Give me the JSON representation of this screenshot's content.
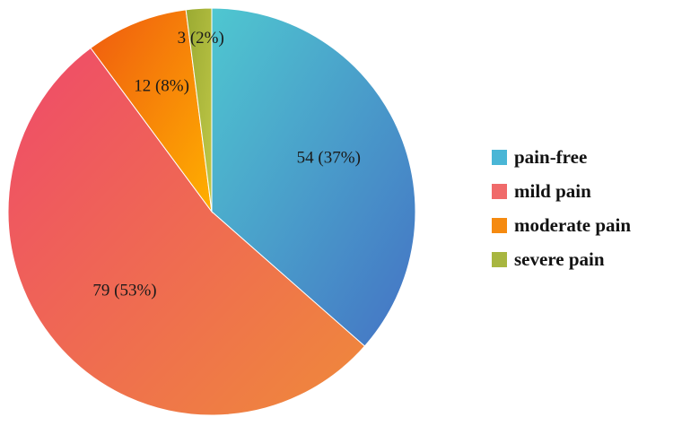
{
  "chart_data": {
    "type": "pie",
    "title": "",
    "categories": [
      "pain-free",
      "mild pain",
      "moderate pain",
      "severe pain"
    ],
    "values": [
      54,
      79,
      12,
      3
    ],
    "percents": [
      37,
      53,
      8,
      2
    ],
    "labels": [
      "54 (37%)",
      "79 (53%)",
      "12 (8%)",
      "3 (2%)"
    ],
    "colors": {
      "pain-free": [
        "#4fc7d0",
        "#4472c4"
      ],
      "mild pain": [
        "#ef4a6a",
        "#ef8a3a"
      ],
      "moderate pain": [
        "#ef5a10",
        "#ffb000"
      ],
      "severe pain": [
        "#9aaa32",
        "#c0c848"
      ]
    },
    "swatch_colors": [
      "#4ab6d6",
      "#f06a6a",
      "#f58a10",
      "#a8b640"
    ],
    "start": "12 o'clock",
    "direction": "clockwise",
    "legend_position": "right"
  }
}
